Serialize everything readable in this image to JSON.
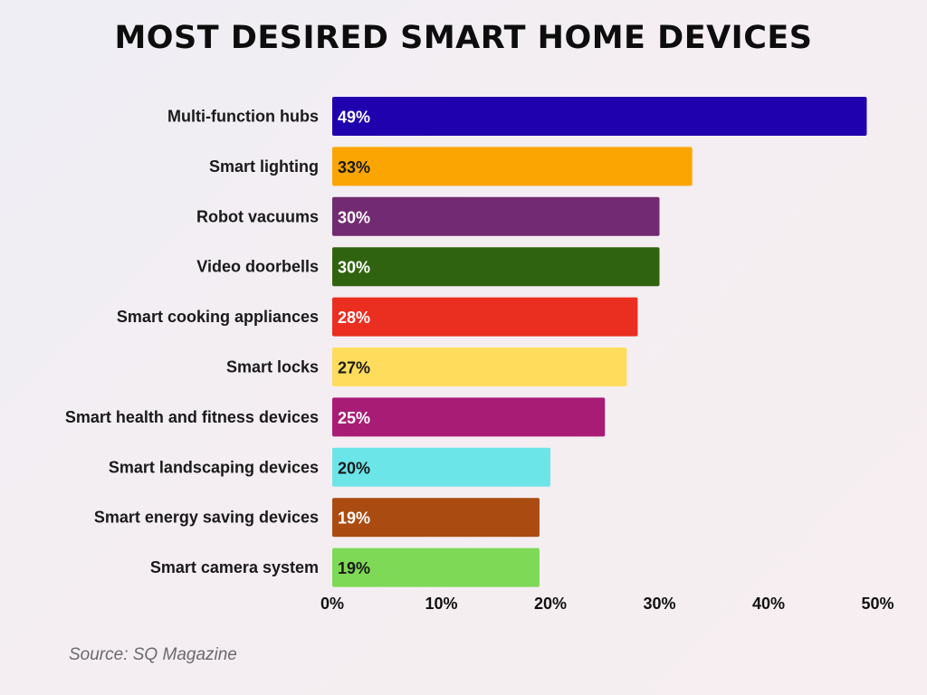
{
  "chart_data": {
    "type": "bar",
    "orientation": "horizontal",
    "title": "MOST DESIRED SMART HOME DEVICES",
    "categories": [
      "Multi-function hubs",
      "Smart lighting",
      "Robot vacuums",
      "Video doorbells",
      "Smart cooking appliances",
      "Smart locks",
      "Smart health and fitness devices",
      "Smart landscaping devices",
      "Smart energy saving devices",
      "Smart camera system"
    ],
    "values": [
      49,
      33,
      30,
      30,
      28,
      27,
      25,
      20,
      19,
      19
    ],
    "value_labels": [
      "49%",
      "33%",
      "30%",
      "30%",
      "28%",
      "27%",
      "25%",
      "20%",
      "19%",
      "19%"
    ],
    "colors": [
      "#1f01ad",
      "#fba503",
      "#722a72",
      "#306310",
      "#ea2e20",
      "#ffdc5b",
      "#a81c76",
      "#6ce5e8",
      "#aa4c12",
      "#7ed957"
    ],
    "label_colors": [
      "#ffffff",
      "#1a1a1a",
      "#ffffff",
      "#ffffff",
      "#ffffff",
      "#1a1a1a",
      "#ffffff",
      "#1a1a1a",
      "#ffffff",
      "#1a1a1a"
    ],
    "xlim": [
      0,
      50
    ],
    "xticks": [
      0,
      10,
      20,
      30,
      40,
      50
    ],
    "xtick_labels": [
      "0%",
      "10%",
      "20%",
      "30%",
      "40%",
      "50%"
    ],
    "xlabel": "",
    "ylabel": "",
    "grid": false,
    "legend": "none"
  },
  "source": "Source: SQ Magazine"
}
